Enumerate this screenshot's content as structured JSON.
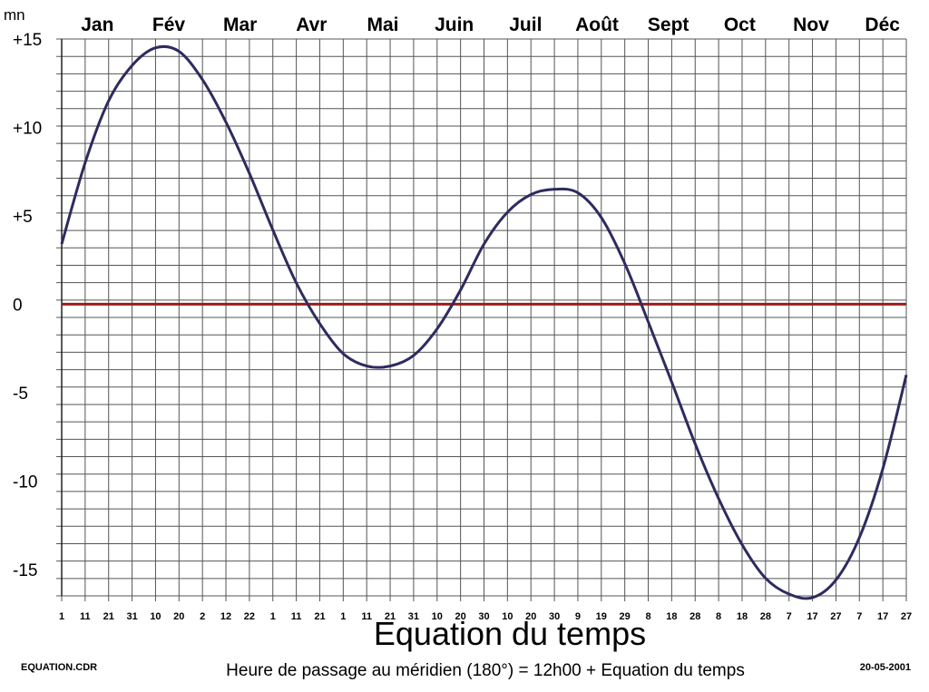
{
  "chart_data": {
    "type": "line",
    "title": "Equation du temps",
    "subtitle": "Heure de passage au méridien (180°) = 12h00 + Equation du temps",
    "ylabel": "mn",
    "ylim": [
      -17,
      15
    ],
    "yticks": [
      15,
      10,
      5,
      0,
      -5,
      -10,
      -15
    ],
    "ytick_labels": [
      "+15",
      "+10",
      "+5",
      "0",
      "-5",
      "-10",
      "-15"
    ],
    "months": [
      "Jan",
      "Fév",
      "Mar",
      "Avr",
      "Mai",
      "Juin",
      "Juil",
      "Août",
      "Sept",
      "Oct",
      "Nov",
      "Déc"
    ],
    "xtick_labels": [
      "1",
      "11",
      "21",
      "31",
      "10",
      "20",
      "2",
      "12",
      "22",
      "1",
      "11",
      "21",
      "1",
      "11",
      "21",
      "31",
      "10",
      "20",
      "30",
      "10",
      "20",
      "30",
      "9",
      "19",
      "29",
      "8",
      "18",
      "28",
      "8",
      "18",
      "28",
      "7",
      "17",
      "27",
      "7",
      "17",
      "27"
    ],
    "grid": true,
    "series": [
      {
        "color": "#2e2b5f",
        "x": [
          1,
          11,
          21,
          31,
          41,
          51,
          61,
          71,
          81,
          91,
          101,
          111,
          121,
          131,
          141,
          151,
          161,
          171,
          181,
          191,
          201,
          211,
          221,
          231,
          241,
          251,
          261,
          271,
          281,
          291,
          301,
          311,
          321,
          331,
          341,
          351,
          361
        ],
        "y": [
          3.4,
          8.0,
          11.5,
          13.5,
          14.5,
          14.3,
          12.7,
          10.3,
          7.4,
          4.2,
          1.2,
          -1.1,
          -2.8,
          -3.5,
          -3.5,
          -2.9,
          -1.4,
          0.8,
          3.4,
          5.2,
          6.2,
          6.5,
          6.3,
          4.9,
          2.3,
          -1.0,
          -4.4,
          -7.9,
          -11.0,
          -13.6,
          -15.5,
          -16.4,
          -16.6,
          -15.6,
          -13.2,
          -9.3,
          -4.0
        ]
      },
      {
        "color": "#9e1a1a",
        "x": [
          1,
          361
        ],
        "y": [
          0,
          0
        ]
      }
    ]
  },
  "footer": {
    "filename": "EQUATION.CDR",
    "date": "20-05-2001"
  }
}
